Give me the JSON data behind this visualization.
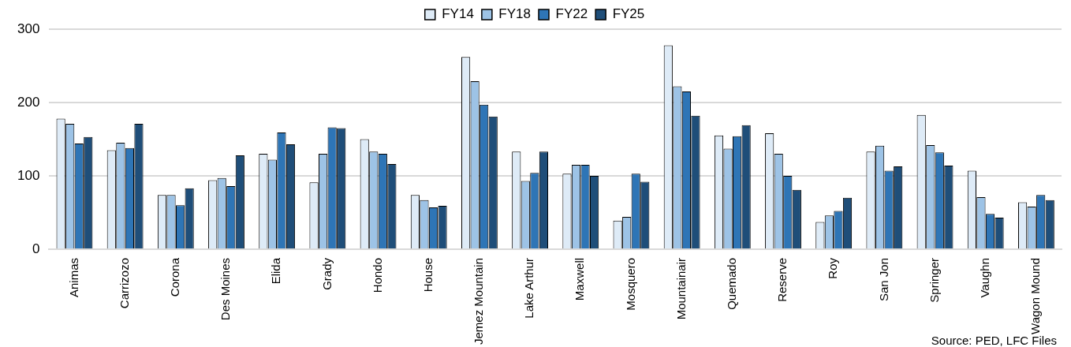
{
  "chart_data": {
    "type": "bar",
    "categories": [
      "Animas",
      "Carrizozo",
      "Corona",
      "Des Moines",
      "Elida",
      "Grady",
      "Hondo",
      "House",
      "Jemez Mountain",
      "Lake Arthur",
      "Maxwell",
      "Mosquero",
      "Mountainair",
      "Quemado",
      "Reserve",
      "Roy",
      "San Jon",
      "Springer",
      "Vaughn",
      "Wagon Mound"
    ],
    "series": [
      {
        "name": "FY14",
        "color": "#deebf7",
        "values": [
          178,
          135,
          74,
          94,
          130,
          91,
          150,
          74,
          262,
          133,
          103,
          39,
          278,
          155,
          158,
          37,
          133,
          183,
          107,
          64
        ]
      },
      {
        "name": "FY18",
        "color": "#9dc3e6",
        "values": [
          171,
          145,
          74,
          97,
          122,
          130,
          133,
          67,
          229,
          93,
          115,
          44,
          222,
          137,
          130,
          46,
          141,
          142,
          71,
          58
        ]
      },
      {
        "name": "FY22",
        "color": "#2e75b6",
        "values": [
          144,
          138,
          60,
          86,
          159,
          166,
          130,
          57,
          197,
          104,
          115,
          103,
          215,
          154,
          100,
          52,
          107,
          132,
          48,
          74
        ]
      },
      {
        "name": "FY25",
        "color": "#1f4e79",
        "values": [
          153,
          171,
          83,
          128,
          143,
          165,
          116,
          59,
          181,
          133,
          100,
          92,
          182,
          169,
          81,
          70,
          113,
          114,
          43,
          67
        ]
      }
    ],
    "ylim": [
      0,
      300
    ],
    "yticks": [
      0,
      100,
      200,
      300
    ],
    "grid": "y",
    "legend": "top",
    "annotations": [
      "Source: PED, LFC Files"
    ]
  }
}
